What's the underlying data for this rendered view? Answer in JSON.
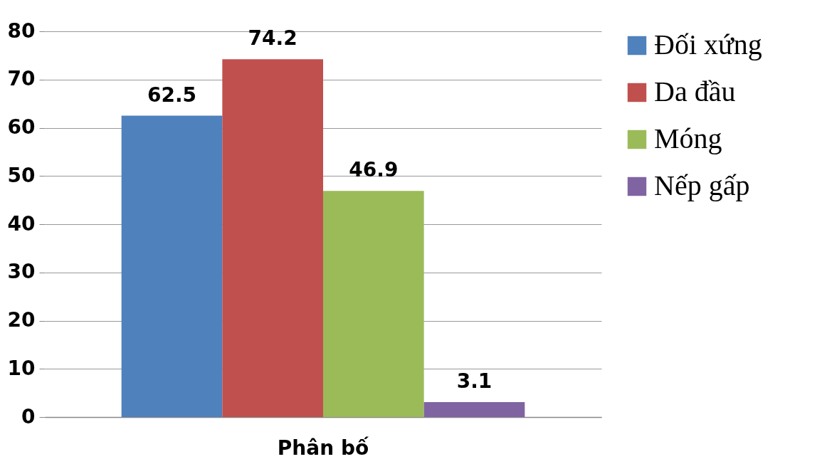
{
  "chart_data": {
    "type": "bar",
    "categories": [
      "Phân bố"
    ],
    "series": [
      {
        "name": "Đối xứng",
        "color": "#4f81bd",
        "values": [
          62.5
        ]
      },
      {
        "name": "Da đầu",
        "color": "#c0504d",
        "values": [
          74.2
        ]
      },
      {
        "name": "Móng",
        "color": "#9bbb59",
        "values": [
          46.9
        ]
      },
      {
        "name": "Nếp gấp",
        "color": "#8064a2",
        "values": [
          3.1
        ]
      }
    ],
    "ylim": [
      0,
      80
    ],
    "yticks": [
      0,
      10,
      20,
      30,
      40,
      50,
      60,
      70,
      80
    ],
    "grid": "y",
    "legend": "right",
    "data_labels": true
  }
}
